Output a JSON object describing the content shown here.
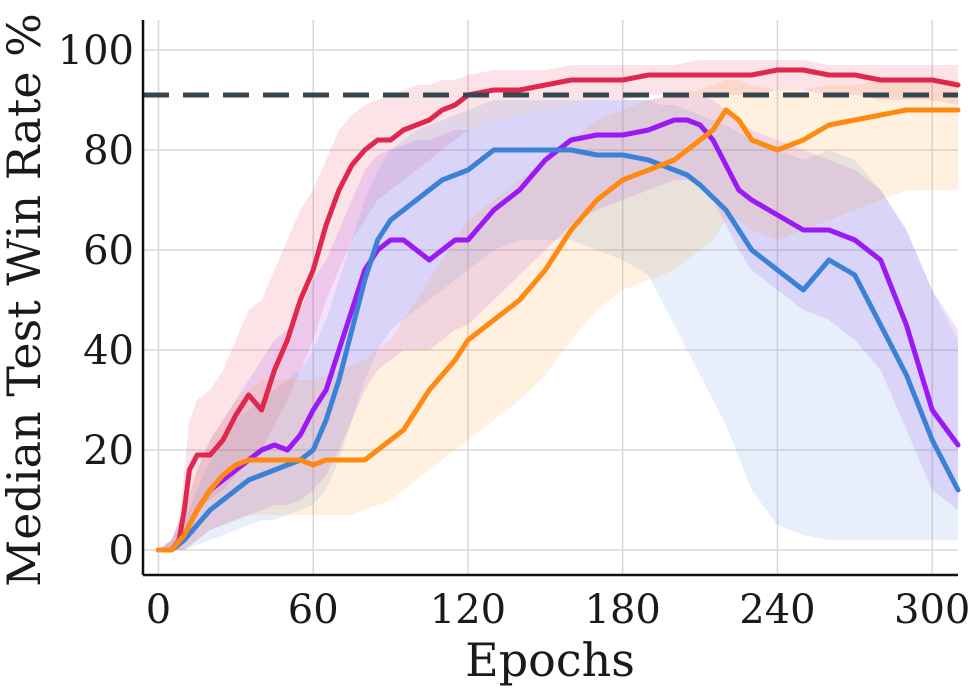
{
  "chart_data": {
    "type": "line",
    "xlabel": "Epochs",
    "ylabel": "Median Test Win Rate %",
    "xlim": [
      -6,
      310
    ],
    "ylim": [
      -5,
      106
    ],
    "xticks": [
      "0",
      "60",
      "120",
      "180",
      "240",
      "300"
    ],
    "yticks": [
      "0",
      "20",
      "40",
      "60",
      "80",
      "100"
    ],
    "grid": true,
    "reference_line": {
      "y": 91,
      "color": "#37474f",
      "style": "dashed"
    },
    "series": [
      {
        "color": "#e0284f",
        "x": [
          0,
          5,
          8,
          10,
          12,
          15,
          20,
          25,
          30,
          35,
          40,
          45,
          50,
          55,
          60,
          65,
          70,
          75,
          80,
          85,
          90,
          95,
          100,
          105,
          110,
          115,
          120,
          130,
          140,
          150,
          160,
          170,
          180,
          190,
          200,
          210,
          220,
          230,
          240,
          250,
          260,
          270,
          280,
          290,
          300,
          310
        ],
        "y": [
          0,
          0,
          2,
          8,
          16,
          19,
          19,
          22,
          27,
          31,
          28,
          36,
          42,
          50,
          56,
          65,
          72,
          77,
          80,
          82,
          82,
          84,
          85,
          86,
          88,
          89,
          91,
          92,
          92,
          93,
          94,
          94,
          94,
          95,
          95,
          95,
          95,
          95,
          96,
          96,
          95,
          95,
          94,
          94,
          94,
          93
        ],
        "lower": [
          0,
          0,
          0,
          2,
          6,
          8,
          10,
          12,
          15,
          18,
          20,
          25,
          30,
          36,
          42,
          50,
          56,
          62,
          66,
          70,
          72,
          74,
          76,
          78,
          80,
          82,
          84,
          86,
          87,
          88,
          89,
          90,
          90,
          91,
          91,
          91,
          91,
          91,
          92,
          92,
          91,
          91,
          90,
          90,
          90,
          89
        ],
        "upper": [
          0,
          2,
          6,
          16,
          26,
          30,
          32,
          36,
          42,
          48,
          50,
          56,
          62,
          68,
          72,
          78,
          84,
          87,
          89,
          90,
          91,
          92,
          93,
          93,
          94,
          94,
          95,
          96,
          96,
          96,
          97,
          97,
          97,
          97,
          97,
          98,
          98,
          98,
          98,
          98,
          97,
          97,
          97,
          97,
          97,
          97
        ]
      },
      {
        "color": "#9b19f5",
        "x": [
          0,
          5,
          10,
          15,
          20,
          25,
          30,
          35,
          40,
          45,
          50,
          55,
          60,
          65,
          70,
          75,
          80,
          85,
          90,
          95,
          100,
          105,
          110,
          115,
          120,
          130,
          140,
          150,
          160,
          170,
          180,
          190,
          200,
          205,
          210,
          215,
          220,
          225,
          230,
          240,
          250,
          260,
          270,
          280,
          290,
          300,
          310
        ],
        "y": [
          0,
          0,
          3,
          8,
          12,
          14,
          16,
          18,
          20,
          21,
          20,
          23,
          28,
          32,
          40,
          48,
          56,
          60,
          62,
          62,
          60,
          58,
          60,
          62,
          62,
          68,
          72,
          78,
          82,
          83,
          83,
          84,
          86,
          86,
          85,
          82,
          77,
          72,
          70,
          67,
          64,
          64,
          62,
          58,
          45,
          28,
          21
        ],
        "lower": [
          0,
          0,
          0,
          2,
          4,
          5,
          6,
          7,
          8,
          9,
          9,
          10,
          12,
          15,
          20,
          26,
          32,
          36,
          38,
          40,
          40,
          40,
          42,
          44,
          45,
          50,
          55,
          60,
          65,
          68,
          70,
          72,
          74,
          74,
          73,
          70,
          65,
          60,
          56,
          52,
          48,
          46,
          42,
          36,
          24,
          12,
          8
        ],
        "upper": [
          0,
          2,
          8,
          16,
          22,
          26,
          30,
          34,
          38,
          42,
          44,
          48,
          54,
          58,
          64,
          70,
          76,
          79,
          80,
          81,
          82,
          82,
          83,
          84,
          84,
          86,
          87,
          88,
          89,
          90,
          90,
          90,
          91,
          91,
          91,
          90,
          88,
          86,
          84,
          82,
          80,
          78,
          76,
          72,
          64,
          52,
          44
        ]
      },
      {
        "color": "#3b82d6",
        "x": [
          0,
          5,
          10,
          15,
          20,
          25,
          30,
          35,
          40,
          45,
          50,
          55,
          60,
          65,
          70,
          75,
          80,
          85,
          90,
          95,
          100,
          105,
          110,
          115,
          120,
          125,
          130,
          140,
          150,
          160,
          170,
          180,
          190,
          195,
          200,
          205,
          210,
          220,
          230,
          240,
          250,
          260,
          270,
          280,
          290,
          300,
          310
        ],
        "y": [
          0,
          0,
          2,
          5,
          8,
          10,
          12,
          14,
          15,
          16,
          17,
          18,
          20,
          26,
          34,
          44,
          54,
          62,
          66,
          68,
          70,
          72,
          74,
          75,
          76,
          78,
          80,
          80,
          80,
          80,
          79,
          79,
          78,
          77,
          76,
          75,
          73,
          68,
          60,
          56,
          52,
          58,
          55,
          45,
          35,
          22,
          12
        ],
        "lower": [
          0,
          0,
          0,
          1,
          2,
          3,
          4,
          5,
          6,
          6,
          7,
          8,
          9,
          12,
          18,
          26,
          34,
          40,
          44,
          46,
          48,
          50,
          52,
          54,
          56,
          58,
          60,
          62,
          62,
          62,
          60,
          58,
          55,
          50,
          45,
          40,
          35,
          25,
          12,
          5,
          3,
          2,
          2,
          2,
          2,
          2,
          2
        ],
        "upper": [
          0,
          2,
          6,
          12,
          18,
          22,
          26,
          28,
          30,
          32,
          34,
          36,
          40,
          46,
          54,
          62,
          70,
          76,
          80,
          82,
          84,
          85,
          86,
          87,
          88,
          89,
          90,
          90,
          90,
          90,
          90,
          90,
          90,
          89,
          89,
          88,
          87,
          85,
          82,
          80,
          78,
          80,
          78,
          72,
          64,
          52,
          42
        ]
      },
      {
        "color": "#ff8a12",
        "x": [
          0,
          5,
          10,
          15,
          20,
          25,
          30,
          35,
          40,
          45,
          50,
          55,
          60,
          65,
          70,
          75,
          80,
          85,
          90,
          95,
          100,
          105,
          110,
          115,
          120,
          130,
          140,
          150,
          160,
          170,
          180,
          190,
          200,
          210,
          215,
          220,
          225,
          230,
          240,
          250,
          260,
          270,
          280,
          290,
          300,
          310
        ],
        "y": [
          0,
          0,
          3,
          8,
          12,
          15,
          17,
          18,
          18,
          18,
          18,
          18,
          17,
          18,
          18,
          18,
          18,
          20,
          22,
          24,
          28,
          32,
          35,
          38,
          42,
          46,
          50,
          56,
          64,
          70,
          74,
          76,
          78,
          82,
          84,
          88,
          86,
          82,
          80,
          82,
          85,
          86,
          87,
          88,
          88,
          88
        ],
        "lower": [
          0,
          0,
          0,
          2,
          4,
          5,
          6,
          7,
          7,
          7,
          7,
          7,
          7,
          7,
          7,
          7,
          8,
          9,
          10,
          12,
          14,
          16,
          18,
          20,
          22,
          26,
          30,
          35,
          42,
          48,
          52,
          54,
          56,
          60,
          62,
          66,
          66,
          64,
          62,
          64,
          66,
          68,
          70,
          72,
          72,
          72
        ],
        "upper": [
          0,
          2,
          8,
          16,
          22,
          26,
          30,
          32,
          34,
          34,
          34,
          34,
          34,
          35,
          36,
          37,
          38,
          40,
          42,
          46,
          50,
          54,
          58,
          62,
          66,
          70,
          74,
          78,
          82,
          86,
          88,
          90,
          91,
          92,
          93,
          94,
          94,
          93,
          92,
          92,
          93,
          93,
          94,
          94,
          94,
          94
        ]
      }
    ]
  }
}
